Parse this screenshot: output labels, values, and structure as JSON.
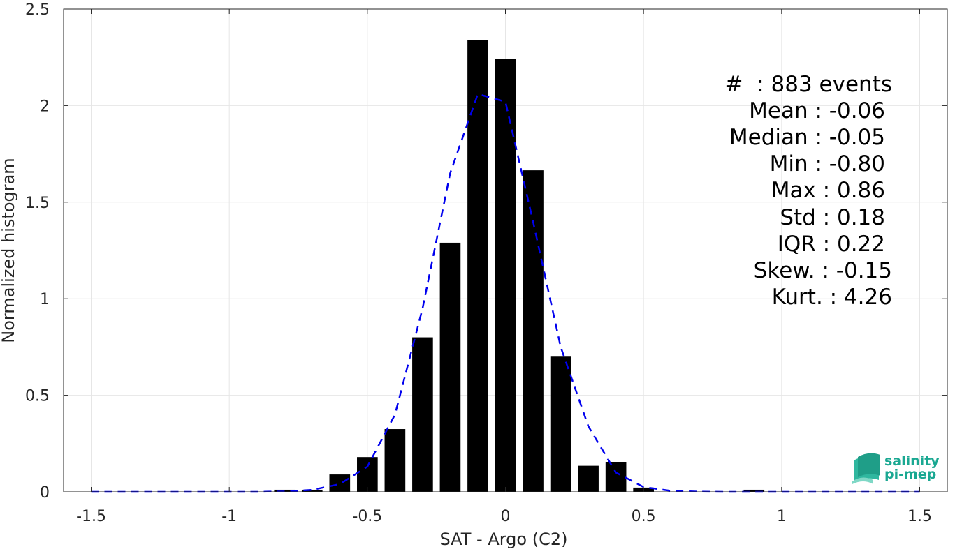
{
  "chart_data": {
    "type": "bar",
    "xlabel": "SAT - Argo (C2)",
    "ylabel": "Normalized histogram",
    "xlim": [
      -1.6,
      1.6
    ],
    "ylim": [
      0,
      2.5
    ],
    "grid": true,
    "x_ticks": [
      "-1.5",
      "-1",
      "-0.5",
      "0",
      "0.5",
      "1",
      "1.5"
    ],
    "x_tick_values": [
      -1.5,
      -1,
      -0.5,
      0,
      0.5,
      1,
      1.5
    ],
    "y_ticks": [
      "0",
      "0.5",
      "1",
      "1.5",
      "2",
      "2.5"
    ],
    "y_tick_values": [
      0,
      0.5,
      1,
      1.5,
      2,
      2.5
    ],
    "bar_width": 0.075,
    "bar_color": "#000000",
    "bars": [
      {
        "x": -0.8,
        "y": 0.011
      },
      {
        "x": -0.7,
        "y": 0.011
      },
      {
        "x": -0.6,
        "y": 0.09
      },
      {
        "x": -0.5,
        "y": 0.18
      },
      {
        "x": -0.4,
        "y": 0.325
      },
      {
        "x": -0.3,
        "y": 0.8
      },
      {
        "x": -0.2,
        "y": 1.29
      },
      {
        "x": -0.1,
        "y": 2.34
      },
      {
        "x": 0.0,
        "y": 2.24
      },
      {
        "x": 0.1,
        "y": 1.665
      },
      {
        "x": 0.2,
        "y": 0.7
      },
      {
        "x": 0.3,
        "y": 0.135
      },
      {
        "x": 0.4,
        "y": 0.155
      },
      {
        "x": 0.5,
        "y": 0.022
      },
      {
        "x": 0.9,
        "y": 0.011
      }
    ],
    "fit_curve": {
      "color": "#0000ee",
      "style": "dashed",
      "x": [
        -1.5,
        -1.4,
        -1.3,
        -1.2,
        -1.1,
        -1.0,
        -0.9,
        -0.8,
        -0.7,
        -0.6,
        -0.5,
        -0.4,
        -0.3,
        -0.2,
        -0.1,
        0.0,
        0.1,
        0.2,
        0.3,
        0.4,
        0.5,
        0.6,
        0.7,
        0.8,
        0.9,
        1.0,
        1.1,
        1.2,
        1.3,
        1.4,
        1.5
      ],
      "y": [
        0,
        0,
        0,
        0,
        0,
        0,
        0,
        0.002,
        0.01,
        0.04,
        0.13,
        0.4,
        0.95,
        1.65,
        2.06,
        2.02,
        1.4,
        0.75,
        0.34,
        0.1,
        0.025,
        0.005,
        0.001,
        0,
        0,
        0,
        0,
        0,
        0,
        0,
        0
      ]
    },
    "stats": {
      "count": "#  : 883 events",
      "mean": "Mean : -0.06",
      "median": "Median : -0.05",
      "min": "Min : -0.80",
      "max": "Max : 0.86",
      "std": "Std : 0.18",
      "iqr": "IQR : 0.22",
      "skew": "Skew. : -0.15",
      "kurt": "Kurt. : 4.26"
    }
  },
  "logo": {
    "line1": "salinity",
    "line2": "pi-mep",
    "color": "#1aa892"
  }
}
